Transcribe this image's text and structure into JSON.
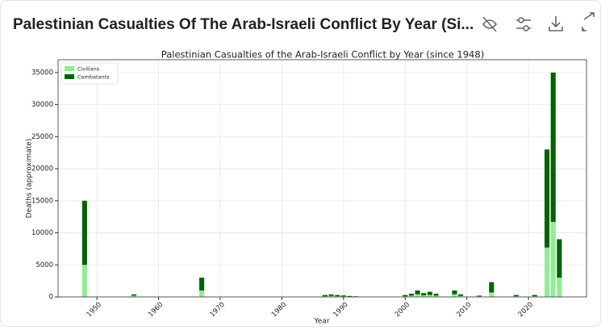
{
  "header": {
    "title": "Palestinian Casualties Of The Arab-Israeli Conflict By Year (Si..."
  },
  "chart_data": {
    "type": "bar",
    "stacked": true,
    "title": "Palestinian Casualties of the Arab-Israeli Conflict by Year (since 1948)",
    "xlabel": "Year",
    "ylabel": "Deaths (approximate)",
    "x": [
      1948,
      1956,
      1967,
      1987,
      1988,
      1989,
      1990,
      1991,
      1992,
      2000,
      2001,
      2002,
      2003,
      2004,
      2005,
      2008,
      2009,
      2012,
      2014,
      2018,
      2021,
      2023,
      2024,
      2025
    ],
    "series": [
      {
        "name": "Civilians",
        "color": "#90ee90",
        "values": [
          5000,
          200,
          1000,
          100,
          150,
          100,
          80,
          50,
          30,
          100,
          200,
          400,
          250,
          300,
          200,
          400,
          150,
          80,
          700,
          100,
          100,
          7700,
          11700,
          3000
        ]
      },
      {
        "name": "Combatants",
        "color": "#006400",
        "values": [
          10000,
          200,
          2000,
          200,
          250,
          200,
          150,
          100,
          70,
          200,
          300,
          600,
          350,
          500,
          300,
          600,
          250,
          120,
          1600,
          200,
          200,
          15300,
          23300,
          6000
        ]
      }
    ],
    "xlim": [
      1943.7,
      2029.4
    ],
    "ylim": [
      0,
      37000
    ],
    "xticks": [
      1950,
      1960,
      1970,
      1980,
      1990,
      2000,
      2010,
      2020
    ],
    "yticks": [
      0,
      5000,
      10000,
      15000,
      20000,
      25000,
      30000,
      35000
    ],
    "grid": true,
    "legend": "upper left"
  }
}
